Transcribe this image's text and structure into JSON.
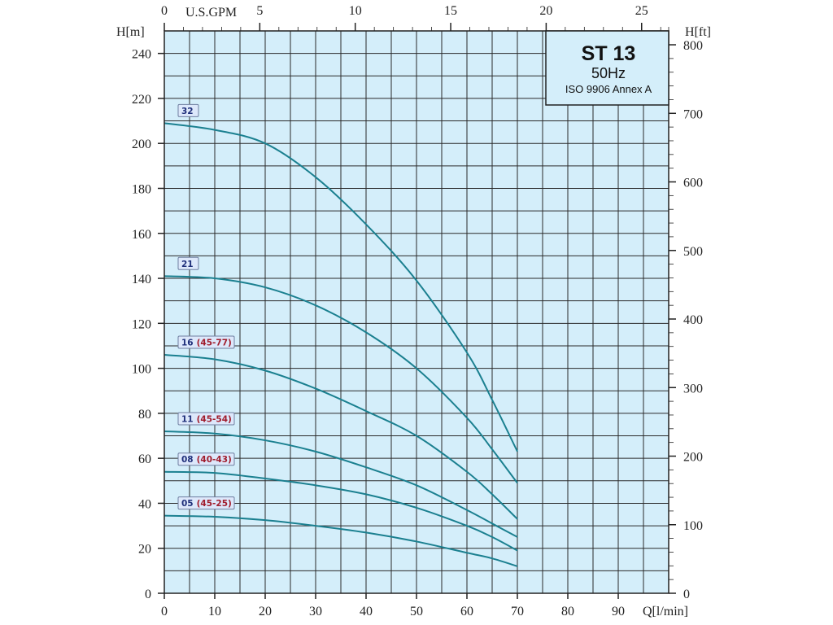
{
  "chart_data": {
    "type": "line",
    "title": "ST 13",
    "subtitle": "50Hz",
    "standard": "ISO 9906 Annex A",
    "xlabel": "Q[l/min]",
    "ylabel": "H[m]",
    "ylabel_right": "H[ft]",
    "xlabel_top": "U.S.GPM",
    "xlim": [
      0,
      100
    ],
    "ylim": [
      0,
      250
    ],
    "ylim_right_ft": [
      0,
      820
    ],
    "xlim_top_gpm": [
      0,
      26.4
    ],
    "x_ticks": [
      "0",
      "10",
      "20",
      "30",
      "40",
      "50",
      "60",
      "70",
      "80",
      "90"
    ],
    "y_ticks": [
      "0",
      "20",
      "40",
      "60",
      "80",
      "100",
      "120",
      "140",
      "160",
      "180",
      "200",
      "220",
      "240"
    ],
    "y_right_ticks": [
      "0",
      "100",
      "200",
      "300",
      "400",
      "500",
      "600",
      "700",
      "800"
    ],
    "x_top_ticks": [
      "0",
      "5",
      "10",
      "15",
      "20",
      "25"
    ],
    "grid": true,
    "x": [
      0,
      10,
      20,
      30,
      40,
      50,
      60,
      65,
      70
    ],
    "series": [
      {
        "name": "32",
        "range": "",
        "values": [
          209,
          206,
          200,
          185,
          164,
          139,
          107,
          86,
          63
        ]
      },
      {
        "name": "21",
        "range": "",
        "values": [
          141,
          140,
          136,
          128,
          116,
          100,
          78,
          64,
          49
        ]
      },
      {
        "name": "16",
        "range": "(45-77)",
        "values": [
          106,
          104,
          99,
          91,
          81,
          70,
          54,
          44,
          33
        ]
      },
      {
        "name": "11",
        "range": "(45-54)",
        "values": [
          72,
          71,
          68,
          63,
          56,
          48,
          37,
          31,
          25
        ]
      },
      {
        "name": "08",
        "range": "(40-43)",
        "values": [
          54,
          53.5,
          51,
          48,
          44,
          38,
          30,
          25,
          19
        ]
      },
      {
        "name": "05",
        "range": "(45-25)",
        "values": [
          34.5,
          34,
          32.5,
          30,
          27,
          23,
          18,
          15.5,
          12
        ]
      }
    ],
    "colors": {
      "curve": "#1b8090",
      "plot_bg": "#d4eefa",
      "grid": "#2a2a2a",
      "label_number": "#1f2f7a",
      "label_range": "#a01c2c"
    }
  }
}
